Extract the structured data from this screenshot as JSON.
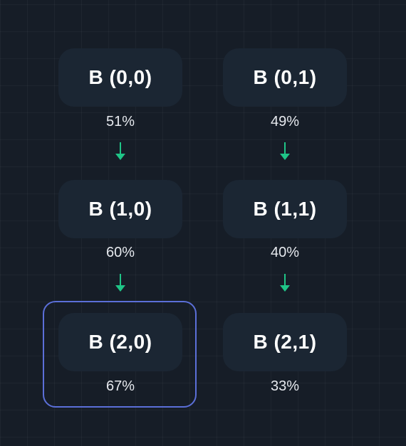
{
  "nodes": [
    {
      "label": "B (0,0)",
      "pct": "51%"
    },
    {
      "label": "B (0,1)",
      "pct": "49%"
    },
    {
      "label": "B (1,0)",
      "pct": "60%"
    },
    {
      "label": "B (1,1)",
      "pct": "40%"
    },
    {
      "label": "B (2,0)",
      "pct": "67%"
    },
    {
      "label": "B (2,1)",
      "pct": "33%"
    }
  ],
  "colors": {
    "background": "#161d27",
    "node": "#1b2633",
    "arrow": "#1fc587",
    "highlight": "#5b6fd8"
  },
  "selected": "B (2,0)"
}
